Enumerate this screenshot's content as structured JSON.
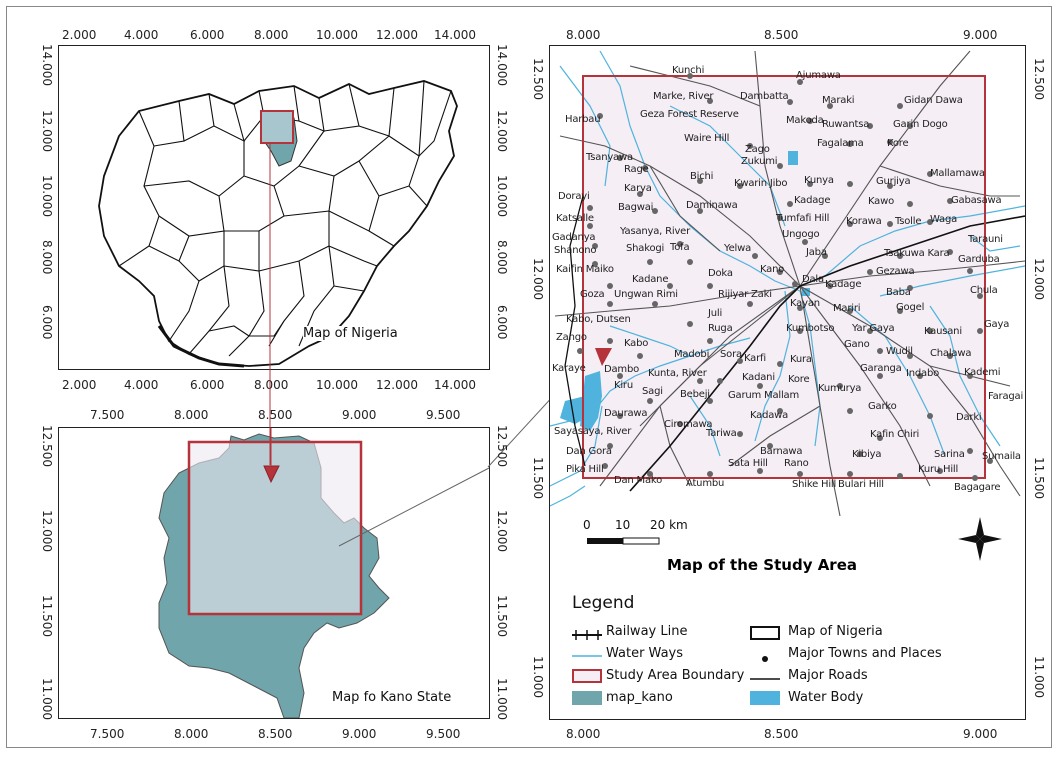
{
  "nigeria_map": {
    "label": "Map of Nigeria",
    "x_ticks": [
      "2.000",
      "4.000",
      "6.000",
      "8.000",
      "10.000",
      "12.000",
      "14.000"
    ],
    "y_ticks": [
      "14.000",
      "12.000",
      "10.000",
      "8.000",
      "6.000"
    ]
  },
  "kano_map": {
    "label": "Map fo Kano State",
    "x_ticks": [
      "7.500",
      "8.000",
      "8.500",
      "9.000",
      "9.500"
    ],
    "y_ticks": [
      "12.500",
      "12.000",
      "11.500",
      "11.000"
    ]
  },
  "study_map": {
    "x_ticks": [
      "8.000",
      "8.500",
      "9.000"
    ],
    "y_ticks": [
      "12.500",
      "12.000",
      "11.500",
      "11.000"
    ],
    "title": "Map of the Study Area",
    "scale": {
      "labels": [
        "0",
        "10",
        "20 km"
      ]
    },
    "towns": [
      "Kunchi",
      "Ajumawa",
      "Marke, River",
      "Dambatta",
      "Maraki",
      "Gidan Dawa",
      "Harbau",
      "Geza Forest Reserve",
      "Makoda",
      "Ruwantsa",
      "Garin Dogo",
      "Waire Hill",
      "Fagalama",
      "Kore",
      "Zago",
      "Tsanyawa",
      "Zukumi",
      "Rage",
      "Bichi",
      "Kwarin Jibo",
      "Kunya",
      "Gurjiya",
      "Mallamawa",
      "Karya",
      "Kadage",
      "Kawo",
      "Gabasawa",
      "Dorayi",
      "Bagwai",
      "Daminawa",
      "Tumfafi Hill",
      "Katsalle",
      "Korawa",
      "Tsolle",
      "Waga",
      "Gadanya",
      "Yasanya, River",
      "Ungogo",
      "Shanono",
      "Shakogi",
      "Tofa",
      "Yelwa",
      "Jaba",
      "Tsakuwa Kara",
      "Tarauni",
      "Kano",
      "Gezawa",
      "Garduba",
      "Kaifin Maiko",
      "Kadane",
      "Doka",
      "Dala",
      "Kadage",
      "Baba",
      "Chula",
      "Goza",
      "Ungwan Rimi",
      "Rijiyar Zaki",
      "Kayan",
      "Mariri",
      "Gogel",
      "Juli",
      "Kumbotso",
      "Yar Gaya",
      "Kausani",
      "Gaya",
      "Kabo, Dutsen",
      "Ruga",
      "Gano",
      "Wudil",
      "Chalawa",
      "Zango",
      "Kabo",
      "Karfi",
      "Kura",
      "Garanga",
      "Indabo",
      "Kademi",
      "Dambo",
      "Madobi",
      "Sora",
      "Kumurya",
      "Karaye",
      "Kunta, River",
      "Kadani",
      "Kore",
      "Faragai",
      "Kiru",
      "Sagi",
      "Bebeji",
      "Garum Mallam",
      "Garko",
      "Darki",
      "Daurawa",
      "Kadawa",
      "Sayasaya, River",
      "Ciromawa",
      "Tariwa",
      "Kafin Chiri",
      "Dan Gora",
      "Barnawa",
      "Kibiya",
      "Sarina",
      "Sumaila",
      "Pika Hill",
      "Dan Mako",
      "Atumbu",
      "Sata Hill",
      "Rano",
      "Shike Hill",
      "Bulari Hill",
      "Kuru Hill",
      "Bagagare"
    ]
  },
  "legend": {
    "title": "Legend",
    "items": [
      "Railway Line",
      "Map of Nigeria",
      "Water Ways",
      "Major Towns and Places",
      "Study Area Boundary",
      "Major Roads",
      "map_kano",
      "Water Body"
    ]
  },
  "colors": {
    "boundary": "#b5333a",
    "kano_fill": "#6fa5ab",
    "study_fill": "#f5eef5",
    "water": "#4fb3dd",
    "road": "#555555"
  }
}
